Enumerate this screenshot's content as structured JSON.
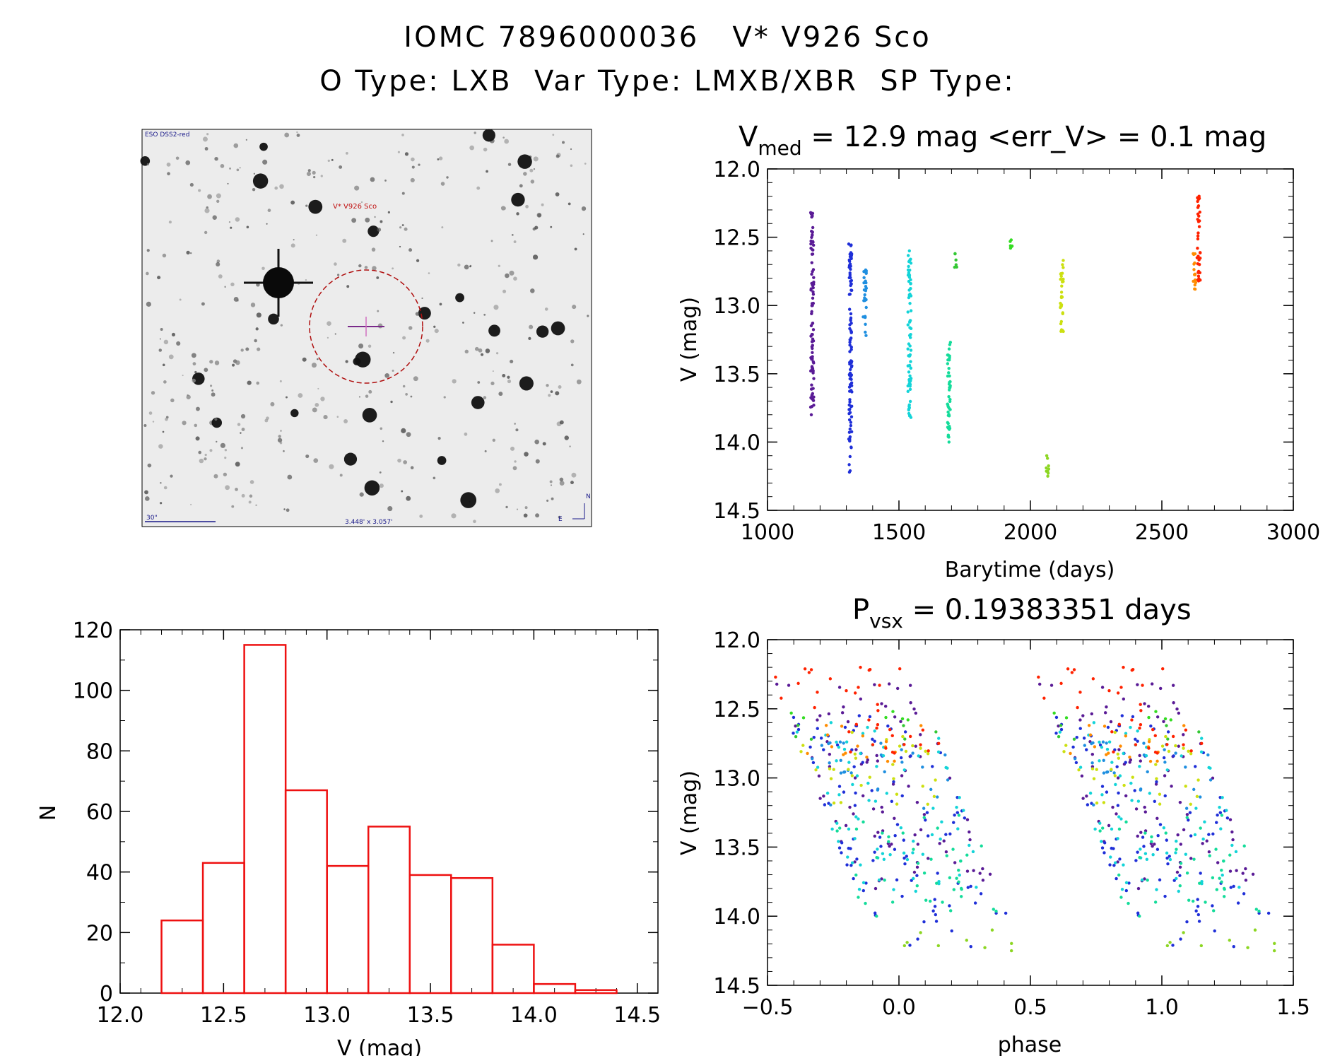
{
  "header": {
    "title_line1": "IOMC 7896000036   V* V926 Sco",
    "title_line2": "O Type: LXB  Var Type: LMXB/XBR  SP Type:"
  },
  "finder_chart": {
    "survey_label": "ESO DSS2-red",
    "target_label": "V* V926 Sco",
    "scale_label": "30\"",
    "fov_label": "3.448' x 3.057'",
    "north_label": "N",
    "east_label": "E"
  },
  "colors": {
    "histogram": "#ee1111",
    "circle": "#b01010"
  },
  "chart_data": [
    {
      "id": "light-curve",
      "type": "scatter",
      "title_parts": {
        "sym": "V",
        "sub": "med",
        "rest": " = 12.9 mag <err_V> = 0.1 mag"
      },
      "xlabel": "Barytime (days)",
      "ylabel": "V (mag)",
      "xlim": [
        1000,
        3000
      ],
      "ylim": [
        12.0,
        14.5
      ],
      "y_inverted": true,
      "xticks": [
        1000,
        1500,
        2000,
        2500,
        3000
      ],
      "xtick_labels": [
        "1000",
        "1500",
        "2000",
        "2500",
        "3000"
      ],
      "yticks": [
        12.0,
        12.5,
        13.0,
        13.5,
        14.0,
        14.5
      ],
      "ytick_labels": [
        "12.0",
        "12.5",
        "13.0",
        "13.5",
        "14.0",
        "14.5"
      ],
      "series": [
        {
          "name": "s1",
          "x": 1170,
          "y_min": 12.32,
          "y_max": 13.8,
          "color": "#5a1b96"
        },
        {
          "name": "s2",
          "x": 1315,
          "y_min": 12.55,
          "y_max": 14.22,
          "color": "#1f2fd8"
        },
        {
          "name": "s3",
          "x": 1370,
          "y_min": 12.74,
          "y_max": 13.22,
          "color": "#1f8fe0"
        },
        {
          "name": "s4",
          "x": 1540,
          "y_min": 12.6,
          "y_max": 13.82,
          "color": "#14d4d8"
        },
        {
          "name": "s5",
          "x": 1690,
          "y_min": 13.27,
          "y_max": 14.0,
          "color": "#14dc9a"
        },
        {
          "name": "s6",
          "x": 1715,
          "y_min": 12.62,
          "y_max": 12.72,
          "color": "#34c834"
        },
        {
          "name": "s7",
          "x": 1925,
          "y_min": 12.52,
          "y_max": 12.58,
          "color": "#34dc22"
        },
        {
          "name": "s8",
          "x": 2065,
          "y_min": 14.1,
          "y_max": 14.25,
          "color": "#8cd622"
        },
        {
          "name": "s9",
          "x": 2120,
          "y_min": 12.67,
          "y_max": 13.19,
          "color": "#cce010"
        },
        {
          "name": "s10",
          "x": 2625,
          "y_min": 12.62,
          "y_max": 12.88,
          "color": "#ff8c00"
        },
        {
          "name": "s11",
          "x": 2640,
          "y_min": 12.2,
          "y_max": 12.82,
          "color": "#ff2200"
        }
      ]
    },
    {
      "id": "histogram",
      "type": "bar",
      "xlabel": "V (mag)",
      "ylabel": "N",
      "xlim": [
        12.0,
        14.6
      ],
      "ylim": [
        0,
        120
      ],
      "bin_edges": [
        12.2,
        12.4,
        12.6,
        12.8,
        13.0,
        13.2,
        13.4,
        13.6,
        13.8,
        14.0,
        14.2,
        14.4
      ],
      "values": [
        24,
        43,
        115,
        67,
        42,
        55,
        39,
        38,
        16,
        3,
        1
      ],
      "xticks": [
        12.0,
        12.5,
        13.0,
        13.5,
        14.0,
        14.5
      ],
      "xtick_labels": [
        "12.0",
        "12.5",
        "13.0",
        "13.5",
        "14.0",
        "14.5"
      ],
      "yticks": [
        0,
        20,
        40,
        60,
        80,
        100,
        120
      ],
      "ytick_labels": [
        "0",
        "20",
        "40",
        "60",
        "80",
        "100",
        "120"
      ]
    },
    {
      "id": "phase-curve",
      "type": "scatter",
      "title_parts": {
        "sym": "P",
        "sub": "vsx",
        "rest": " = 0.19383351 days"
      },
      "xlabel": "phase",
      "ylabel": "V (mag)",
      "xlim": [
        -0.5,
        1.5
      ],
      "ylim": [
        12.0,
        14.5
      ],
      "y_inverted": true,
      "xticks": [
        -0.5,
        0.0,
        0.5,
        1.0,
        1.5
      ],
      "xtick_labels": [
        "−0.5",
        "0.0",
        "0.5",
        "1.0",
        "1.5"
      ],
      "yticks": [
        12.0,
        12.5,
        13.0,
        13.5,
        14.0,
        14.5
      ],
      "ytick_labels": [
        "12.0",
        "12.5",
        "13.0",
        "13.5",
        "14.0",
        "14.5"
      ],
      "points_note": "phase-folded copy of light-curve series, repeated over two cycles"
    }
  ]
}
